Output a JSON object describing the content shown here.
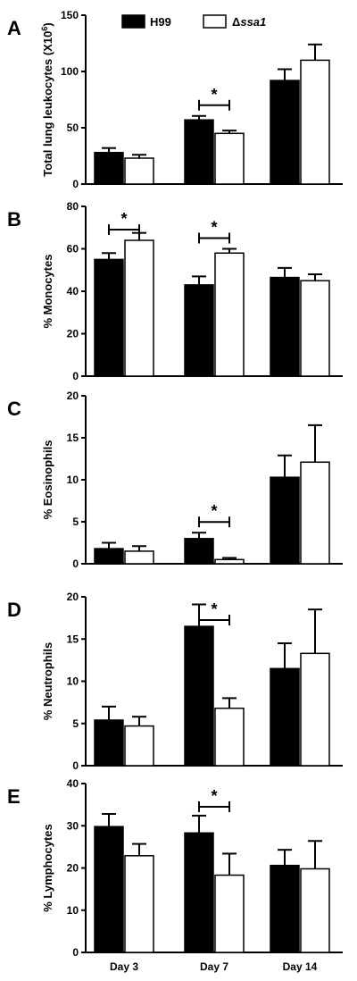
{
  "legend": {
    "h99": "H99",
    "ssa1": "Δssa1"
  },
  "colors": {
    "h99": "#000000",
    "ssa1": "#ffffff"
  },
  "chart_data": [
    {
      "type": "bar",
      "panel_label": "A",
      "ylabel": "Total lung leukocytes (X10^6)",
      "categories": [
        "Day 3",
        "Day 7",
        "Day 14"
      ],
      "ylim": [
        0,
        150
      ],
      "yticks": [
        0,
        50,
        100,
        150
      ],
      "series": [
        {
          "name": "H99",
          "values": [
            28,
            57,
            92
          ],
          "errors": [
            4,
            3.5,
            10
          ]
        },
        {
          "name": "Δssa1",
          "values": [
            23,
            45,
            110
          ],
          "errors": [
            3,
            2.5,
            14
          ]
        }
      ],
      "significance": [
        {
          "category": "Day 7",
          "label": "*"
        }
      ]
    },
    {
      "type": "bar",
      "panel_label": "B",
      "ylabel": "% Monocytes",
      "categories": [
        "Day 3",
        "Day 7",
        "Day 14"
      ],
      "ylim": [
        0,
        80
      ],
      "yticks": [
        0,
        20,
        40,
        60,
        80
      ],
      "series": [
        {
          "name": "H99",
          "values": [
            55,
            43,
            46.5
          ],
          "errors": [
            3,
            4,
            4.5
          ]
        },
        {
          "name": "Δssa1",
          "values": [
            64,
            58,
            45
          ],
          "errors": [
            3.5,
            2,
            3
          ]
        }
      ],
      "significance": [
        {
          "category": "Day 3",
          "label": "*"
        },
        {
          "category": "Day 7",
          "label": "*"
        }
      ]
    },
    {
      "type": "bar",
      "panel_label": "C",
      "ylabel": "% Eosinophils",
      "categories": [
        "Day 3",
        "Day 7",
        "Day 14"
      ],
      "ylim": [
        0,
        20
      ],
      "yticks": [
        0,
        5,
        10,
        15,
        20
      ],
      "series": [
        {
          "name": "H99",
          "values": [
            1.8,
            3.0,
            10.3
          ],
          "errors": [
            0.7,
            0.7,
            2.6
          ]
        },
        {
          "name": "Δssa1",
          "values": [
            1.5,
            0.5,
            12.1
          ],
          "errors": [
            0.6,
            0.2,
            4.4
          ]
        }
      ],
      "significance": [
        {
          "category": "Day 7",
          "label": "*"
        }
      ]
    },
    {
      "type": "bar",
      "panel_label": "D",
      "ylabel": "% Neutrophils",
      "categories": [
        "Day 3",
        "Day 7",
        "Day 14"
      ],
      "ylim": [
        0,
        20
      ],
      "yticks": [
        0,
        5,
        10,
        15,
        20
      ],
      "series": [
        {
          "name": "H99",
          "values": [
            5.4,
            16.5,
            11.5
          ],
          "errors": [
            1.6,
            2.6,
            3.0
          ]
        },
        {
          "name": "Δssa1",
          "values": [
            4.7,
            6.8,
            13.3
          ],
          "errors": [
            1.1,
            1.2,
            5.2
          ]
        }
      ],
      "significance": [
        {
          "category": "Day 7",
          "label": "*"
        }
      ]
    },
    {
      "type": "bar",
      "panel_label": "E",
      "ylabel": "% Lymphocytes",
      "categories": [
        "Day 3",
        "Day 7",
        "Day 14"
      ],
      "ylim": [
        0,
        40
      ],
      "yticks": [
        0,
        10,
        20,
        30,
        40
      ],
      "series": [
        {
          "name": "H99",
          "values": [
            29.8,
            28.3,
            20.6
          ],
          "errors": [
            3.0,
            4.1,
            3.7
          ]
        },
        {
          "name": "Δssa1",
          "values": [
            22.9,
            18.3,
            19.8
          ],
          "errors": [
            2.8,
            5.1,
            6.6
          ]
        }
      ],
      "significance": [
        {
          "category": "Day 7",
          "label": "*"
        }
      ]
    }
  ]
}
